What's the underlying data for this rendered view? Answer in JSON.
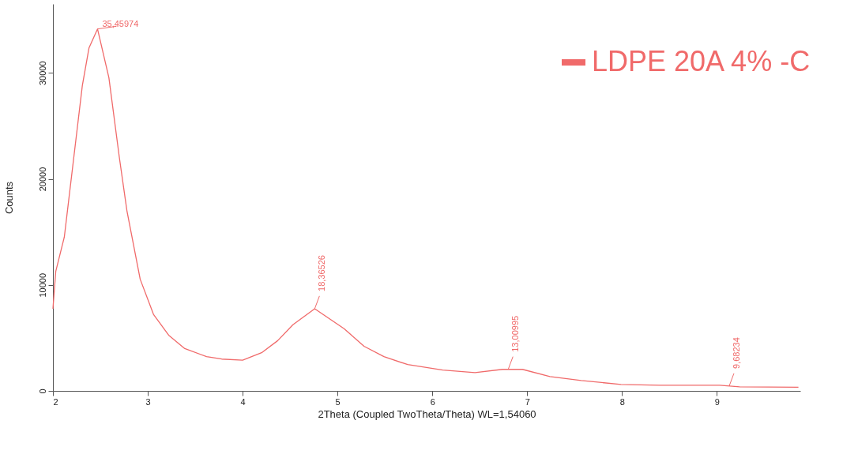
{
  "chart_data": {
    "type": "line",
    "xlabel": "2Theta (Coupled TwoTheta/Theta) WL=1,54060",
    "ylabel": "Counts",
    "xlim": [
      2,
      9.88
    ],
    "ylim": [
      0,
      36500
    ],
    "xticks": [
      2,
      3,
      4,
      5,
      6,
      7,
      8,
      9
    ],
    "yticks": [
      0,
      10000,
      20000,
      30000
    ],
    "grid": false,
    "legend": "top right",
    "marker": "none",
    "line_style": "solid",
    "series": [
      {
        "name": "LDPE 20A 4% -C",
        "color": "#f06a6a",
        "x": [
          2.0,
          2.03,
          2.12,
          2.22,
          2.31,
          2.38,
          2.47,
          2.59,
          2.7,
          2.78,
          2.92,
          3.06,
          3.22,
          3.39,
          3.62,
          3.78,
          4.0,
          4.2,
          4.37,
          4.53,
          4.76,
          5.07,
          5.28,
          5.49,
          5.74,
          6.11,
          6.45,
          6.74,
          6.95,
          7.24,
          7.57,
          7.99,
          8.4,
          9.03,
          9.24,
          9.86
        ],
        "values": [
          7750,
          11280,
          14510,
          22030,
          28800,
          32340,
          34140,
          29550,
          22030,
          17000,
          10530,
          7220,
          5260,
          3990,
          3230,
          3000,
          2900,
          3600,
          4740,
          6240,
          7750,
          5870,
          4210,
          3230,
          2480,
          1960,
          1730,
          2030,
          2030,
          1350,
          980,
          600,
          530,
          530,
          380,
          340
        ]
      }
    ],
    "annotations": [
      {
        "text": "35,45974",
        "x": 2.47,
        "y": 34140
      },
      {
        "text": "18,36526",
        "x": 4.76,
        "y": 7750
      },
      {
        "text": "13,00995",
        "x": 6.8,
        "y": 2030
      },
      {
        "text": "9,68234",
        "x": 9.13,
        "y": 450
      }
    ]
  }
}
